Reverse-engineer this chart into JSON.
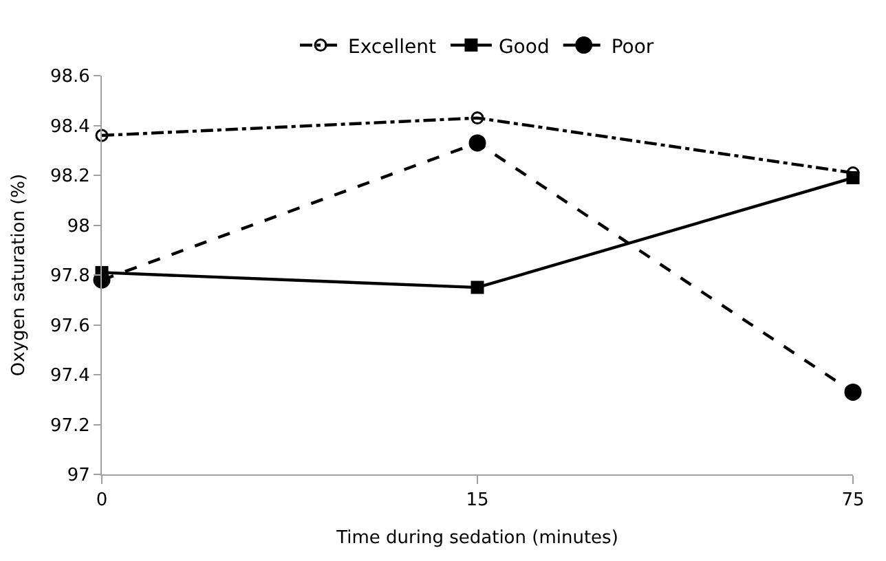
{
  "chart_data": {
    "type": "line",
    "xlabel": "Time during sedation (minutes)",
    "ylabel": "Oxygen saturation (%)",
    "categories": [
      "0",
      "15",
      "75"
    ],
    "series": [
      {
        "name": "Excellent",
        "color": "#000000",
        "values": [
          98.36,
          98.43,
          98.21
        ],
        "marker": "circle-open",
        "line_style": "dashdot"
      },
      {
        "name": "Good",
        "color": "#000000",
        "values": [
          97.81,
          97.75,
          98.19
        ],
        "marker": "square",
        "line_style": "solid"
      },
      {
        "name": "Poor",
        "color": "#000000",
        "values": [
          97.78,
          98.33,
          97.33
        ],
        "marker": "circle",
        "line_style": "dashed"
      }
    ],
    "ylim": [
      97,
      98.6
    ],
    "yticks": [
      97,
      97.2,
      97.4,
      97.6,
      97.8,
      98,
      98.2,
      98.4,
      98.6
    ],
    "legend": "top"
  }
}
